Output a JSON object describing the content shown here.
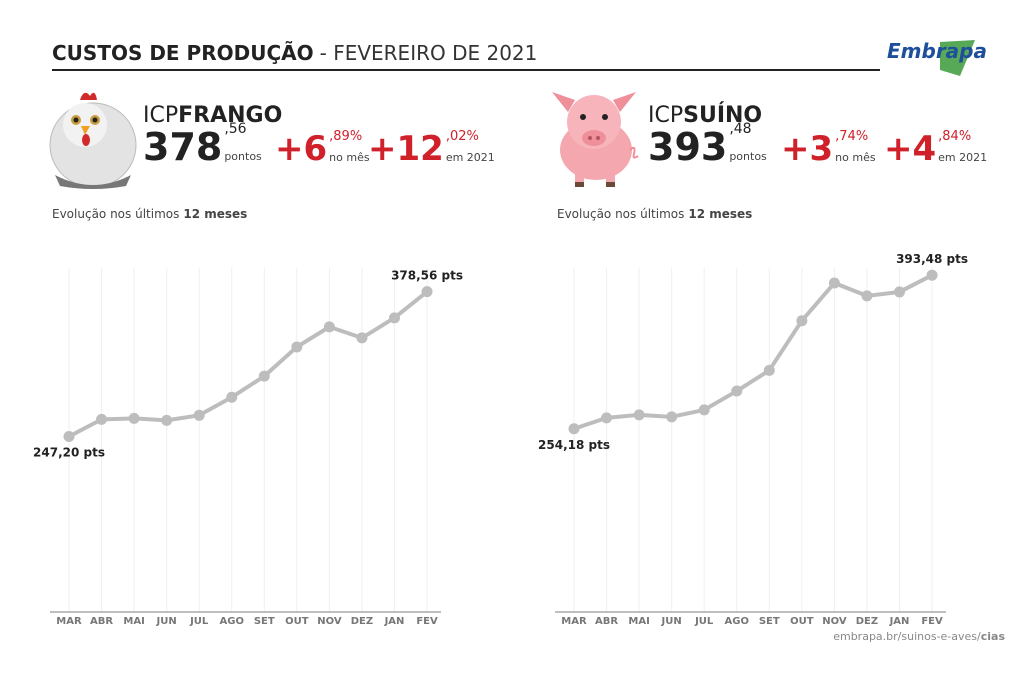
{
  "header": {
    "title_bold": "CUSTOS DE PRODUÇÃO",
    "title_rest": "- FEVEREIRO DE 2021",
    "logo": "Embrapa"
  },
  "panels": [
    {
      "prefix": "ICP",
      "name": "FRANGO",
      "index_int": "378",
      "index_dec": ",56",
      "index_unit": "pontos",
      "month_int": "+6",
      "month_dec": ",89%",
      "month_label": "no mês",
      "year_int": "+12",
      "year_dec": ",02%",
      "year_label": "em 2021",
      "subtitle": "Evolução nos últimos",
      "subtitle_bold": "12 meses"
    },
    {
      "prefix": "ICP",
      "name": "SUÍNO",
      "index_int": "393",
      "index_dec": ",48",
      "index_unit": "pontos",
      "month_int": "+3",
      "month_dec": ",74%",
      "month_label": "no mês",
      "year_int": "+4",
      "year_dec": ",84%",
      "year_label": "em 2021",
      "subtitle": "Evolução nos últimos",
      "subtitle_bold": "12 meses"
    }
  ],
  "chart_data": [
    {
      "type": "line",
      "categories": [
        "MAR",
        "ABR",
        "MAI",
        "JUN",
        "JUL",
        "AGO",
        "SET",
        "OUT",
        "NOV",
        "DEZ",
        "JAN",
        "FEV"
      ],
      "values": [
        247.2,
        262.7,
        263.6,
        261.8,
        266.4,
        282.8,
        301.9,
        328.4,
        346.6,
        336.6,
        354.8,
        378.56
      ],
      "value_labels": [
        "247,20 pts",
        null,
        null,
        null,
        null,
        null,
        null,
        null,
        null,
        null,
        null,
        "378,56 pts"
      ],
      "color": "#bdbdbd",
      "ylim": [
        88,
        400
      ],
      "grid": true
    },
    {
      "type": "line",
      "categories": [
        "MAR",
        "ABR",
        "MAI",
        "JUN",
        "JUL",
        "AGO",
        "SET",
        "OUT",
        "NOV",
        "DEZ",
        "JAN",
        "FEV"
      ],
      "values": [
        254.18,
        264.1,
        266.8,
        265.0,
        271.3,
        288.4,
        307.2,
        352.2,
        386.4,
        374.7,
        378.3,
        393.48
      ],
      "value_labels": [
        "254,18 pts",
        null,
        null,
        null,
        null,
        null,
        null,
        null,
        null,
        null,
        null,
        "393,48 pts"
      ],
      "color": "#bdbdbd",
      "ylim": [
        88,
        400
      ],
      "grid": true
    }
  ],
  "footer": {
    "url": "embrapa.br/suinos-e-aves/",
    "bold": "cias"
  }
}
